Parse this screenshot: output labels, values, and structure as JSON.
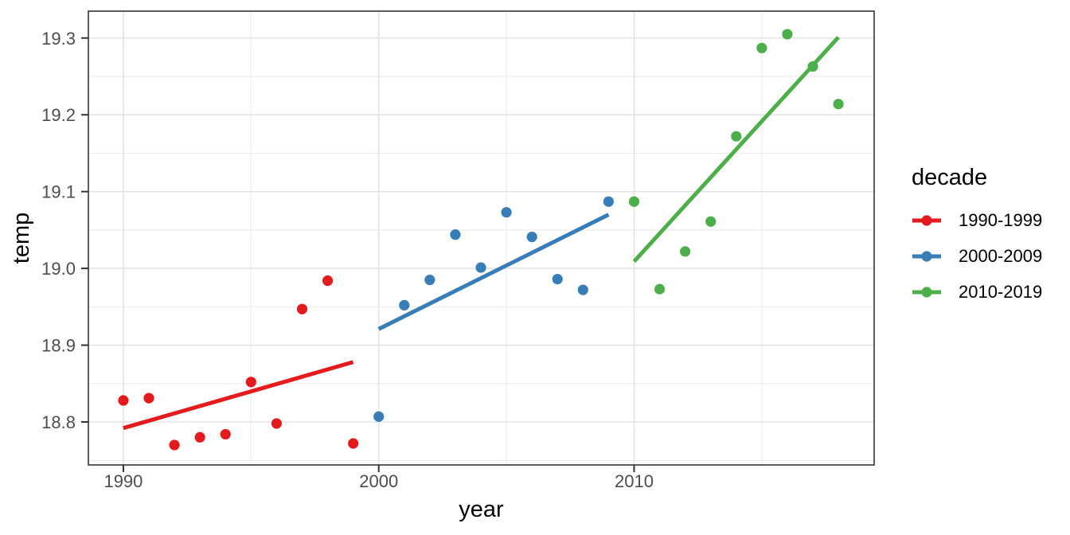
{
  "figure": {
    "background": "#FFFFFF",
    "panel_border_color": "#333333",
    "grid_major_color": "#E3E3E3",
    "grid_minor_color": "#EFEFEF",
    "tick_mark_color": "#333333",
    "tick_label_color": "#4D4D4D",
    "axis_title_color": "#000000"
  },
  "chart_data": {
    "type": "scatter",
    "title": "",
    "xlabel": "year",
    "ylabel": "temp",
    "xlim": [
      1988.63,
      2019.4
    ],
    "ylim": [
      18.744,
      19.335
    ],
    "grid": "major+minor",
    "legend_position": "right",
    "legend_title": "decade",
    "point_radius": 6.6,
    "line_width": 5,
    "x_ticks": [
      {
        "value": 1990,
        "label": "1990"
      },
      {
        "value": 2000,
        "label": "2000"
      },
      {
        "value": 2010,
        "label": "2010"
      }
    ],
    "y_ticks": [
      {
        "value": 18.8,
        "label": "18.8"
      },
      {
        "value": 18.9,
        "label": "18.9"
      },
      {
        "value": 19.0,
        "label": "19.0"
      },
      {
        "value": 19.1,
        "label": "19.1"
      },
      {
        "value": 19.2,
        "label": "19.2"
      },
      {
        "value": 19.3,
        "label": "19.3"
      }
    ],
    "x_minor_gridlines": [
      1995,
      2005,
      2015
    ],
    "y_minor_gridlines": [
      18.75,
      18.85,
      18.95,
      19.05,
      19.15,
      19.25
    ],
    "series": [
      {
        "name": "1990-1999",
        "color": "#E41A1C",
        "x": [
          1990,
          1991,
          1992,
          1993,
          1994,
          1995,
          1996,
          1997,
          1998,
          1999
        ],
        "y": [
          18.828,
          18.831,
          18.77,
          18.78,
          18.784,
          18.852,
          18.798,
          18.947,
          18.984,
          18.772
        ],
        "trend": {
          "x": [
            1990,
            1999
          ],
          "y": [
            18.792,
            18.878
          ]
        }
      },
      {
        "name": "2000-2009",
        "color": "#377EB8",
        "x": [
          2000,
          2001,
          2002,
          2003,
          2004,
          2005,
          2006,
          2007,
          2008,
          2009
        ],
        "y": [
          18.807,
          18.952,
          18.985,
          19.044,
          19.001,
          19.073,
          19.041,
          18.986,
          18.972,
          19.087
        ],
        "trend": {
          "x": [
            2000,
            2009
          ],
          "y": [
            18.921,
            19.07
          ]
        }
      },
      {
        "name": "2010-2019",
        "color": "#4DAF4A",
        "x": [
          2010,
          2011,
          2012,
          2013,
          2014,
          2015,
          2016,
          2017,
          2018
        ],
        "y": [
          19.087,
          18.973,
          19.022,
          19.061,
          19.172,
          19.287,
          19.305,
          19.263,
          19.214
        ],
        "trend": {
          "x": [
            2010,
            2018
          ],
          "y": [
            19.009,
            19.301
          ]
        }
      }
    ]
  }
}
